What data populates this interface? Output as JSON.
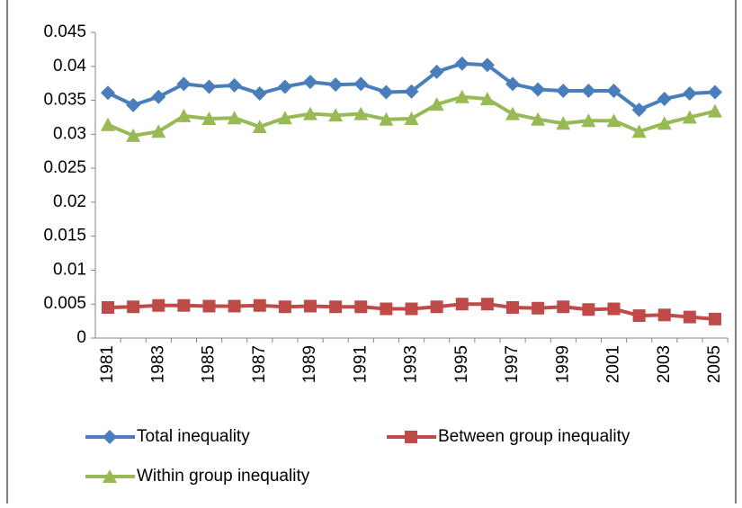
{
  "chart_data": {
    "type": "line",
    "categories": [
      "1981",
      null,
      "1983",
      null,
      "1985",
      null,
      "1987",
      null,
      "1989",
      null,
      "1991",
      null,
      "1993",
      null,
      "1995",
      null,
      "1997",
      null,
      "1999",
      null,
      "2001",
      null,
      "2003",
      null,
      "2005"
    ],
    "series": [
      {
        "name": "Total inequality",
        "color": "#4a7ebb",
        "marker": "diamond",
        "values": [
          0.0361,
          0.0343,
          0.0355,
          0.0374,
          0.037,
          0.0372,
          0.036,
          0.037,
          0.0377,
          0.0373,
          0.0374,
          0.0362,
          0.0363,
          0.0392,
          0.0404,
          0.0402,
          0.0374,
          0.0366,
          0.0364,
          0.0364,
          0.0364,
          0.0336,
          0.0352,
          0.036,
          0.0362
        ]
      },
      {
        "name": "Between group inequality",
        "color": "#be4b48",
        "marker": "square",
        "values": [
          0.0045,
          0.0046,
          0.0048,
          0.0048,
          0.0047,
          0.0047,
          0.0048,
          0.0046,
          0.0047,
          0.0046,
          0.0046,
          0.0043,
          0.0043,
          0.0046,
          0.005,
          0.005,
          0.0045,
          0.0044,
          0.0046,
          0.0042,
          0.0043,
          0.0033,
          0.0034,
          0.0031,
          0.0028
        ]
      },
      {
        "name": "Within group inequality",
        "color": "#98b954",
        "marker": "triangle",
        "values": [
          0.0314,
          0.0298,
          0.0304,
          0.0327,
          0.0323,
          0.0324,
          0.0311,
          0.0324,
          0.033,
          0.0328,
          0.033,
          0.0322,
          0.0323,
          0.0344,
          0.0355,
          0.0352,
          0.033,
          0.0322,
          0.0316,
          0.032,
          0.032,
          0.0304,
          0.0316,
          0.0325,
          0.0334
        ]
      }
    ],
    "ylim": [
      0,
      0.045
    ],
    "yticks": [
      0,
      0.005,
      0.01,
      0.015,
      0.02,
      0.025,
      0.03,
      0.035,
      0.04,
      0.045
    ],
    "grid": false
  }
}
